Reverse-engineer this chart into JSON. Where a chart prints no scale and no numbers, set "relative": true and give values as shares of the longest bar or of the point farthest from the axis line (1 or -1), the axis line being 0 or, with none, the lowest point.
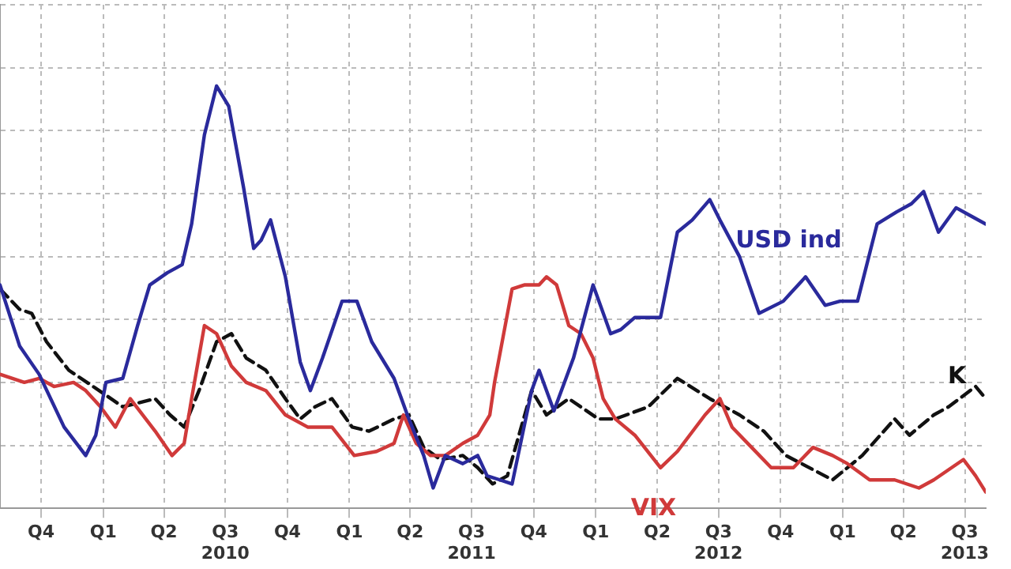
{
  "chart_data": {
    "type": "line",
    "relative": true,
    "grid": true,
    "legend": false,
    "marker": "none",
    "line_style": "solid",
    "xlim": [
      "2009-08-01",
      "2013-08-01"
    ],
    "xticks": [
      {
        "value": "2009-10-01",
        "label": "Q4"
      },
      {
        "value": "2010-01-01",
        "label": "Q1"
      },
      {
        "value": "2010-04-01",
        "label": "Q2"
      },
      {
        "value": "2010-07-01",
        "label": "Q3\n2010"
      },
      {
        "value": "2010-10-01",
        "label": "Q4"
      },
      {
        "value": "2011-01-01",
        "label": "Q1"
      },
      {
        "value": "2011-04-01",
        "label": "Q2"
      },
      {
        "value": "2011-07-01",
        "label": "Q3\n2011"
      },
      {
        "value": "2011-10-01",
        "label": "Q4"
      },
      {
        "value": "2012-01-01",
        "label": "Q1"
      },
      {
        "value": "2012-04-01",
        "label": "Q2"
      },
      {
        "value": "2012-07-01",
        "label": "Q3\n2012"
      },
      {
        "value": "2012-10-01",
        "label": "Q4"
      },
      {
        "value": "2013-01-01",
        "label": "Q1"
      },
      {
        "value": "2013-04-01",
        "label": "Q2"
      },
      {
        "value": "2013-07-01",
        "label": "Q3\n2013"
      }
    ],
    "series": [
      {
        "name": "USD ind",
        "color": "#2a2a9c",
        "x": [
          "2009-08-01",
          "2009-08-30",
          "2009-09-28",
          "2009-11-04",
          "2009-12-06",
          "2009-12-21",
          "2010-01-05",
          "2010-01-30",
          "2010-02-21",
          "2010-03-11",
          "2010-04-06",
          "2010-04-28",
          "2010-05-12",
          "2010-05-31",
          "2010-06-18",
          "2010-07-06",
          "2010-07-28",
          "2010-08-12",
          "2010-08-23",
          "2010-09-06",
          "2010-09-28",
          "2010-10-20",
          "2010-11-04",
          "2010-11-22",
          "2010-12-21",
          "2011-01-12",
          "2011-02-03",
          "2011-03-08",
          "2011-03-30",
          "2011-04-21",
          "2011-05-05",
          "2011-05-23",
          "2011-06-18",
          "2011-07-10",
          "2011-07-24",
          "2011-08-12",
          "2011-08-30",
          "2011-09-28",
          "2011-10-09",
          "2011-10-31",
          "2011-11-29",
          "2011-12-28",
          "2012-01-23",
          "2012-02-07",
          "2012-02-28",
          "2012-04-06",
          "2012-05-01",
          "2012-05-23",
          "2012-06-18",
          "2012-07-03",
          "2012-08-01",
          "2012-08-30",
          "2012-10-05",
          "2012-10-16",
          "2012-11-07",
          "2012-12-06",
          "2012-12-28",
          "2013-01-23",
          "2013-02-21",
          "2013-03-22",
          "2013-04-13",
          "2013-05-01",
          "2013-05-23",
          "2013-06-18",
          "2013-07-10",
          "2013-08-01"
        ],
        "values": [
          0.51,
          0.36,
          0.29,
          0.16,
          0.09,
          0.14,
          0.27,
          0.28,
          0.41,
          0.51,
          0.54,
          0.56,
          0.66,
          0.88,
          1,
          0.95,
          0.75,
          0.6,
          0.62,
          0.67,
          0.53,
          0.32,
          0.25,
          0.33,
          0.47,
          0.47,
          0.37,
          0.28,
          0.18,
          0.09,
          0.01,
          0.09,
          0.07,
          0.09,
          0.04,
          0.03,
          0.02,
          0.25,
          0.3,
          0.2,
          0.33,
          0.51,
          0.39,
          0.4,
          0.43,
          0.43,
          0.64,
          0.67,
          0.72,
          0.67,
          0.58,
          0.44,
          0.47,
          0.49,
          0.53,
          0.46,
          0.47,
          0.47,
          0.66,
          0.69,
          0.71,
          0.74,
          0.64,
          0.7,
          0.68,
          0.66
        ]
      },
      {
        "name": "VIX",
        "color": "#d03a3a",
        "x": [
          "2009-08-01",
          "2009-09-06",
          "2009-09-28",
          "2009-10-20",
          "2009-11-18",
          "2009-12-06",
          "2009-12-28",
          "2010-01-19",
          "2010-02-10",
          "2010-03-19",
          "2010-04-13",
          "2010-05-01",
          "2010-05-12",
          "2010-05-31",
          "2010-06-18",
          "2010-07-10",
          "2010-08-01",
          "2010-08-30",
          "2010-09-28",
          "2010-10-31",
          "2010-12-06",
          "2011-01-08",
          "2011-02-10",
          "2011-03-08",
          "2011-03-22",
          "2011-04-10",
          "2011-05-01",
          "2011-05-23",
          "2011-06-18",
          "2011-07-10",
          "2011-07-28",
          "2011-08-04",
          "2011-08-30",
          "2011-09-17",
          "2011-10-09",
          "2011-10-20",
          "2011-11-04",
          "2011-11-22",
          "2011-12-10",
          "2011-12-28",
          "2012-01-12",
          "2012-01-30",
          "2012-02-28",
          "2012-04-06",
          "2012-05-01",
          "2012-06-11",
          "2012-07-03",
          "2012-07-21",
          "2012-08-19",
          "2012-09-17",
          "2012-10-20",
          "2012-11-18",
          "2012-12-17",
          "2013-01-08",
          "2013-02-10",
          "2013-03-19",
          "2013-04-24",
          "2013-05-16",
          "2013-06-29",
          "2013-07-17",
          "2013-08-01"
        ],
        "values": [
          0.29,
          0.27,
          0.28,
          0.26,
          0.27,
          0.25,
          0.21,
          0.16,
          0.23,
          0.15,
          0.09,
          0.12,
          0.23,
          0.41,
          0.39,
          0.31,
          0.27,
          0.25,
          0.19,
          0.16,
          0.16,
          0.09,
          0.1,
          0.12,
          0.19,
          0.12,
          0.09,
          0.09,
          0.12,
          0.14,
          0.19,
          0.27,
          0.5,
          0.51,
          0.51,
          0.53,
          0.51,
          0.41,
          0.39,
          0.33,
          0.23,
          0.18,
          0.14,
          0.06,
          0.1,
          0.19,
          0.23,
          0.16,
          0.11,
          0.06,
          0.06,
          0.11,
          0.09,
          0.07,
          0.03,
          0.03,
          0.01,
          0.03,
          0.08,
          0.04,
          0
        ]
      },
      {
        "name": "K",
        "color": "#111111",
        "line_style": "dashed",
        "x": [
          "2009-08-01",
          "2009-08-30",
          "2009-09-17",
          "2009-10-09",
          "2009-11-11",
          "2009-12-17",
          "2010-01-30",
          "2010-03-19",
          "2010-04-10",
          "2010-05-01",
          "2010-05-23",
          "2010-06-18",
          "2010-07-10",
          "2010-08-01",
          "2010-08-30",
          "2010-09-28",
          "2010-10-20",
          "2010-11-11",
          "2010-12-06",
          "2011-01-05",
          "2011-01-30",
          "2011-03-08",
          "2011-03-30",
          "2011-04-21",
          "2011-05-16",
          "2011-06-18",
          "2011-07-10",
          "2011-08-01",
          "2011-08-23",
          "2011-09-28",
          "2011-10-20",
          "2011-11-22",
          "2012-01-05",
          "2012-01-30",
          "2012-03-19",
          "2012-05-01",
          "2012-06-18",
          "2012-08-01",
          "2012-09-06",
          "2012-10-09",
          "2012-12-17",
          "2013-01-30",
          "2013-03-19",
          "2013-04-10",
          "2013-05-16",
          "2013-06-07",
          "2013-07-17",
          "2013-08-01"
        ],
        "values": [
          0.5,
          0.45,
          0.44,
          0.37,
          0.3,
          0.26,
          0.21,
          0.23,
          0.19,
          0.16,
          0.25,
          0.37,
          0.39,
          0.33,
          0.3,
          0.23,
          0.18,
          0.21,
          0.23,
          0.16,
          0.15,
          0.18,
          0.19,
          0.11,
          0.08,
          0.09,
          0.06,
          0.02,
          0.04,
          0.25,
          0.19,
          0.23,
          0.18,
          0.18,
          0.21,
          0.28,
          0.23,
          0.19,
          0.15,
          0.09,
          0.03,
          0.09,
          0.18,
          0.14,
          0.19,
          0.21,
          0.26,
          0.23
        ]
      }
    ]
  }
}
